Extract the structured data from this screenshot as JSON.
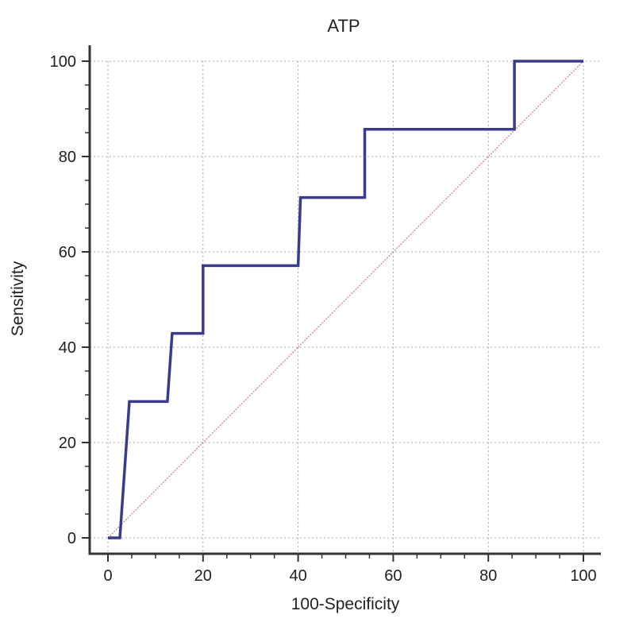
{
  "chart_data": {
    "type": "line",
    "title": "ATP",
    "xlabel": "100-Specificity",
    "ylabel": "Sensitivity",
    "xlim": [
      0,
      100
    ],
    "ylim": [
      0,
      100
    ],
    "x_ticks": [
      0,
      20,
      40,
      60,
      80,
      100
    ],
    "y_ticks": [
      0,
      20,
      40,
      60,
      80,
      100
    ],
    "grid": true,
    "series": [
      {
        "style": "step",
        "color": "#3b3b8c",
        "points": [
          [
            0,
            0
          ],
          [
            2.5,
            0
          ],
          [
            4.5,
            28.6
          ],
          [
            12.5,
            28.6
          ],
          [
            13.5,
            42.9
          ],
          [
            20,
            42.9
          ],
          [
            20,
            57.1
          ],
          [
            40,
            57.1
          ],
          [
            40.5,
            71.4
          ],
          [
            54,
            71.4
          ],
          [
            54,
            85.7
          ],
          [
            85.5,
            85.7
          ],
          [
            85.5,
            100
          ],
          [
            100,
            100
          ]
        ]
      },
      {
        "style": "diagonal-reference",
        "color": "#c9858a",
        "points": [
          [
            0,
            0
          ],
          [
            100,
            100
          ]
        ]
      }
    ]
  }
}
